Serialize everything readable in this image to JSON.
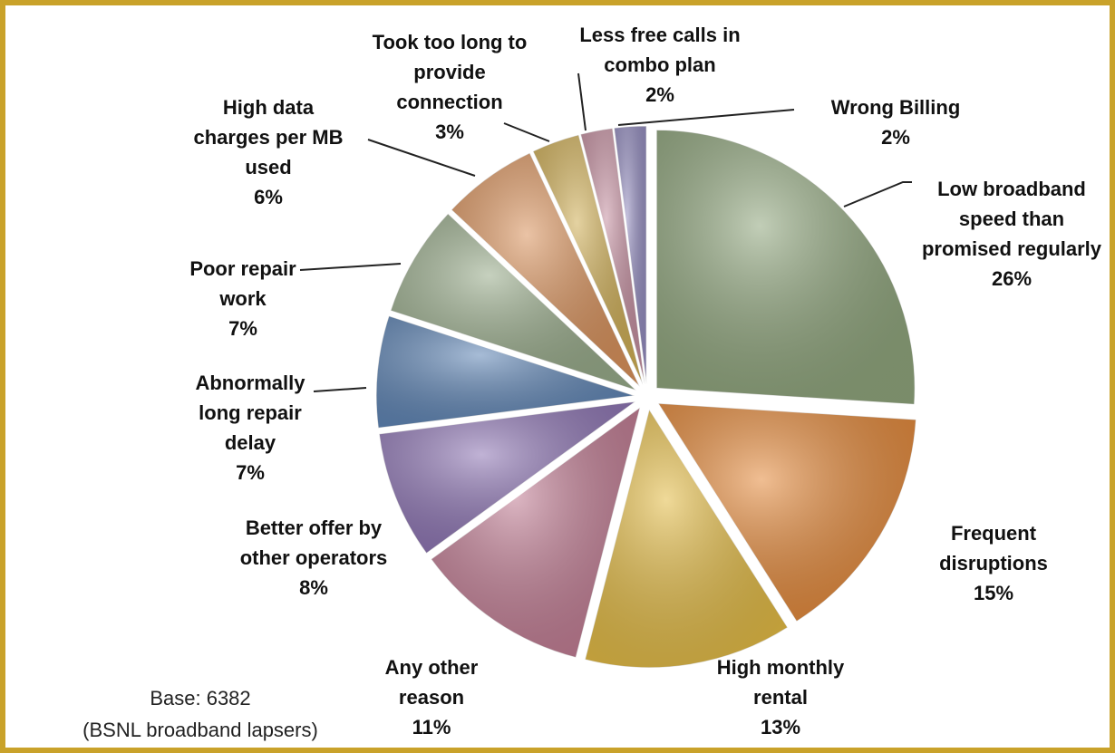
{
  "chart_data": {
    "type": "pie",
    "categories": [
      "Low broadband speed than promised regularly",
      "Frequent disruptions",
      "High monthly rental",
      "Any other reason",
      "Better offer by other operators",
      "Abnormally long repair delay",
      "Poor repair work",
      "High data charges per MB used",
      "Took too long to provide connection",
      "Less free calls in combo plan",
      "Wrong Billing"
    ],
    "values": [
      26,
      15,
      13,
      11,
      8,
      7,
      7,
      6,
      3,
      2,
      2
    ],
    "value_labels": [
      "26%",
      "15%",
      "13%",
      "11%",
      "8%",
      "7%",
      "7%",
      "6%",
      "3%",
      "2%",
      "2%"
    ],
    "colors": [
      "#8fa57c",
      "#e4893a",
      "#e3bb45",
      "#c27d94",
      "#8d74b3",
      "#5f85b5",
      "#98ab8a",
      "#d9925c",
      "#cfae55",
      "#c58fa0",
      "#938cbf"
    ],
    "annotations": [
      "Base: 6382",
      "(BSNL broadband lapsers)"
    ]
  }
}
